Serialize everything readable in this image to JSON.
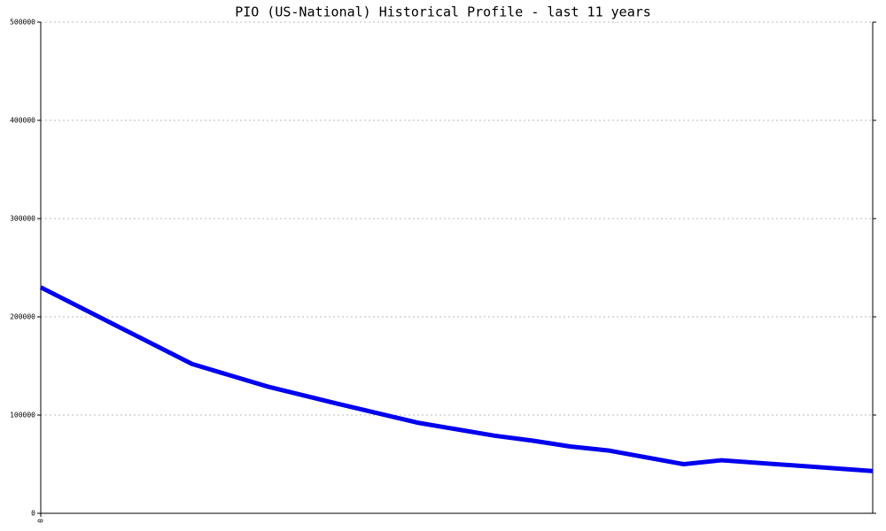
{
  "chart_data": {
    "type": "line",
    "title": "PIO (US-National) Historical Profile - last 11 years",
    "x": [
      0,
      2,
      3,
      3.9,
      5,
      6,
      6.5,
      7,
      7.5,
      8.5,
      9,
      11
    ],
    "series": [
      {
        "color": "#0000ee",
        "values": [
          230000,
          152000,
          129000,
          112000,
          92000,
          79000,
          74000,
          68000,
          64000,
          50000,
          54000,
          43000
        ]
      }
    ],
    "xlim": [
      0,
      11
    ],
    "xticks": [
      0
    ],
    "ylim": [
      0,
      500000
    ],
    "yticks": [
      0,
      100000,
      200000,
      300000,
      400000,
      500000
    ],
    "grid": true
  }
}
